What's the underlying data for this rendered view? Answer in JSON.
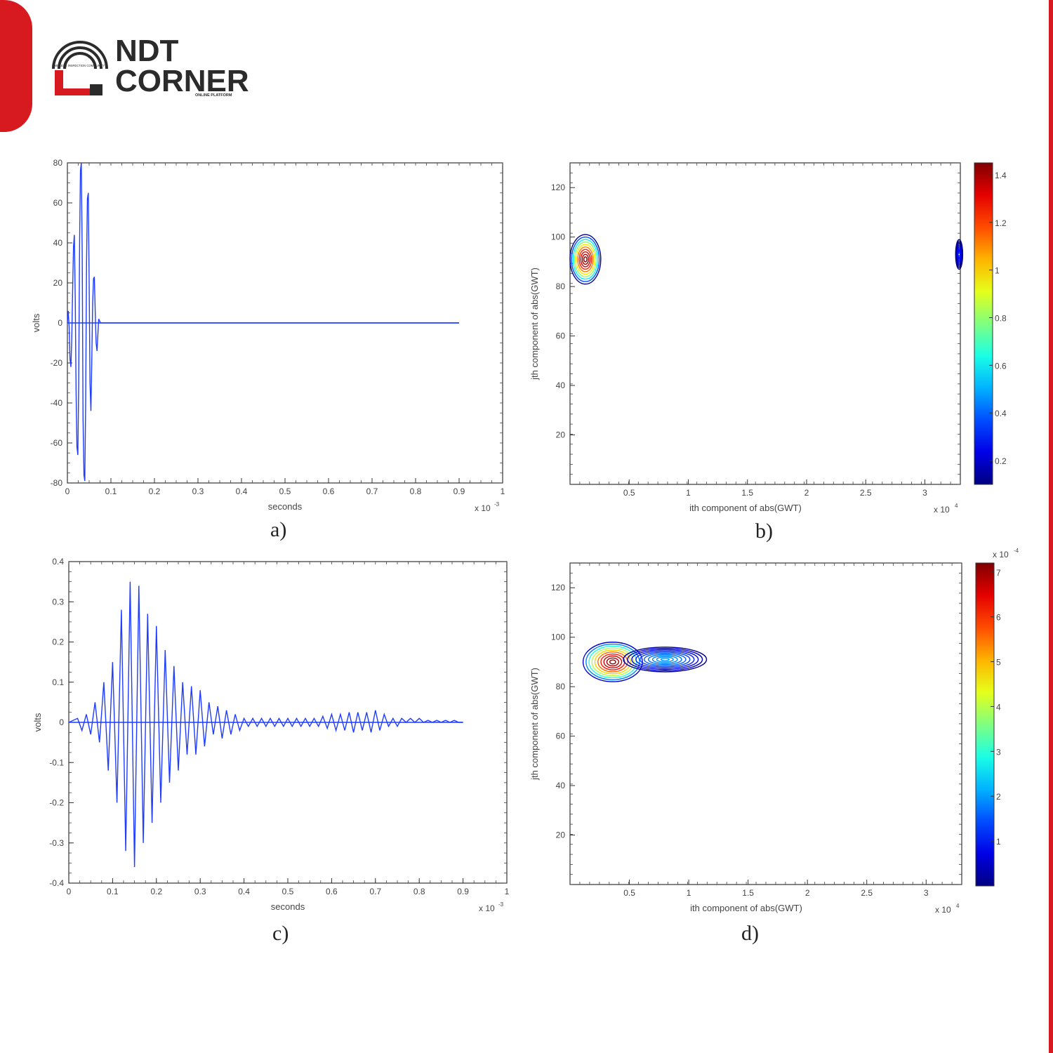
{
  "colors": {
    "brand_red": "#d71920",
    "dark": "#2b2b2b",
    "signal": "#1f3cff",
    "axis": "#333333"
  },
  "logo": {
    "word1": "NDT",
    "word2": "CORNER",
    "small_left": "LIMITLESS INSPECTION COMMUNITY",
    "small_right": "ONLINE PLATFORM"
  },
  "captions": {
    "a": "a)",
    "b": "b)",
    "c": "c)",
    "d": "d)"
  },
  "chart_data": [
    {
      "id": "a",
      "type": "line",
      "xlabel": "seconds",
      "ylabel": "volts",
      "x_multiplier": "x 10",
      "x_exponent": "-3",
      "xlim": [
        0,
        1
      ],
      "ylim": [
        -80,
        80
      ],
      "xticks": [
        "0",
        "0.1",
        "0.2",
        "0.3",
        "0.4",
        "0.5",
        "0.6",
        "0.7",
        "0.8",
        "0.9",
        "1"
      ],
      "yticks": [
        "80",
        "60",
        "40",
        "20",
        "0",
        "-20",
        "-40",
        "-60",
        "-80"
      ],
      "series": [
        {
          "x": [
            0.0,
            0.002,
            0.004,
            0.006,
            0.008,
            0.01,
            0.012,
            0.014,
            0.016,
            0.018,
            0.02,
            0.022,
            0.024,
            0.026,
            0.028,
            0.03,
            0.032,
            0.034,
            0.036,
            0.038,
            0.04,
            0.042,
            0.044,
            0.046,
            0.048,
            0.05,
            0.052,
            0.054,
            0.056,
            0.058,
            0.06,
            0.062,
            0.064,
            0.066,
            0.068,
            0.07,
            0.072,
            0.074,
            0.076,
            0.078,
            0.08,
            0.082,
            0.084,
            0.086,
            0.088,
            0.09,
            0.092,
            0.094,
            0.096,
            0.098,
            0.1,
            0.11,
            0.2,
            0.5,
            0.9
          ],
          "y": [
            0,
            6,
            -2,
            -18,
            -22,
            -8,
            15,
            38,
            44,
            12,
            -35,
            -62,
            -66,
            -30,
            40,
            76,
            80,
            35,
            -48,
            -76,
            -79,
            -40,
            30,
            62,
            65,
            20,
            -30,
            -44,
            -20,
            10,
            22,
            23,
            5,
            -10,
            -14,
            -6,
            2,
            1,
            0,
            0,
            0,
            0,
            0,
            0,
            0,
            0,
            0,
            0,
            0,
            0,
            0,
            0,
            0,
            0,
            0
          ]
        }
      ]
    },
    {
      "id": "b",
      "type": "contour",
      "xlabel": "ith component of abs(GWT)",
      "ylabel": "jth component of abs(GWT)",
      "x_multiplier": "x 10",
      "x_exponent": "4",
      "xlim": [
        0,
        3.3
      ],
      "ylim": [
        0,
        130
      ],
      "xticks": [
        "0.5",
        "1",
        "1.5",
        "2",
        "2.5",
        "3"
      ],
      "yticks": [
        "120",
        "100",
        "80",
        "60",
        "40",
        "20"
      ],
      "colorbar": {
        "min": 0.1,
        "max": 1.45,
        "ticks": [
          "1.4",
          "1.2",
          "1",
          "0.8",
          "0.6",
          "0.4",
          "0.2"
        ],
        "multiplier": ""
      },
      "peaks": [
        {
          "x": 0.13,
          "y": 91,
          "amplitude": 1.45,
          "rx": 0.13,
          "ry": 10
        },
        {
          "x": 3.29,
          "y": 93,
          "amplitude": 0.3,
          "rx": 0.03,
          "ry": 6
        }
      ]
    },
    {
      "id": "c",
      "type": "line",
      "xlabel": "seconds",
      "ylabel": "volts",
      "x_multiplier": "x 10",
      "x_exponent": "-3",
      "xlim": [
        0,
        1
      ],
      "ylim": [
        -0.4,
        0.4
      ],
      "xticks": [
        "0",
        "0.1",
        "0.2",
        "0.3",
        "0.4",
        "0.5",
        "0.6",
        "0.7",
        "0.8",
        "0.9",
        "1"
      ],
      "yticks": [
        "0.4",
        "0.3",
        "0.2",
        "0.1",
        "0",
        "-0.1",
        "-0.2",
        "-0.3",
        "-0.4"
      ],
      "series": [
        {
          "x": [
            0.0,
            0.02,
            0.03,
            0.04,
            0.05,
            0.06,
            0.07,
            0.08,
            0.09,
            0.1,
            0.11,
            0.12,
            0.13,
            0.14,
            0.15,
            0.16,
            0.17,
            0.18,
            0.19,
            0.2,
            0.21,
            0.22,
            0.23,
            0.24,
            0.25,
            0.26,
            0.27,
            0.28,
            0.29,
            0.3,
            0.31,
            0.32,
            0.33,
            0.34,
            0.35,
            0.36,
            0.37,
            0.38,
            0.39,
            0.4,
            0.41,
            0.42,
            0.43,
            0.44,
            0.45,
            0.46,
            0.47,
            0.48,
            0.49,
            0.5,
            0.51,
            0.52,
            0.53,
            0.54,
            0.55,
            0.56,
            0.57,
            0.58,
            0.59,
            0.6,
            0.61,
            0.62,
            0.63,
            0.64,
            0.65,
            0.66,
            0.67,
            0.68,
            0.69,
            0.7,
            0.71,
            0.72,
            0.73,
            0.74,
            0.75,
            0.76,
            0.77,
            0.78,
            0.79,
            0.8,
            0.81,
            0.82,
            0.83,
            0.84,
            0.85,
            0.86,
            0.87,
            0.88,
            0.89,
            0.9
          ],
          "y": [
            0,
            0.01,
            -0.02,
            0.02,
            -0.03,
            0.05,
            -0.05,
            0.1,
            -0.12,
            0.15,
            -0.2,
            0.28,
            -0.32,
            0.35,
            -0.36,
            0.34,
            -0.3,
            0.27,
            -0.25,
            0.24,
            -0.2,
            0.18,
            -0.15,
            0.14,
            -0.12,
            0.1,
            -0.08,
            0.09,
            -0.08,
            0.08,
            -0.06,
            0.05,
            -0.03,
            0.04,
            -0.04,
            0.03,
            -0.03,
            0.02,
            -0.02,
            0.01,
            -0.01,
            0.01,
            -0.01,
            0.01,
            -0.01,
            0.01,
            -0.01,
            0.01,
            -0.01,
            0.01,
            -0.01,
            0.01,
            -0.01,
            0.01,
            -0.01,
            0.01,
            -0.01,
            0.015,
            -0.015,
            0.02,
            -0.02,
            0.02,
            -0.02,
            0.025,
            -0.025,
            0.025,
            -0.02,
            0.025,
            -0.025,
            0.03,
            -0.02,
            0.02,
            -0.01,
            0.01,
            -0.01,
            0.01,
            0,
            0.01,
            0,
            0.01,
            0,
            0.005,
            0,
            0.005,
            0,
            0.005,
            0,
            0.005,
            0,
            0
          ]
        }
      ]
    },
    {
      "id": "d",
      "type": "contour",
      "xlabel": "ith component of abs(GWT)",
      "ylabel": "jth component of abs(GWT)",
      "x_multiplier": "x 10",
      "x_exponent": "4",
      "xlim": [
        0,
        3.3
      ],
      "ylim": [
        0,
        130
      ],
      "xticks": [
        "0.5",
        "1",
        "1.5",
        "2",
        "2.5",
        "3"
      ],
      "yticks": [
        "120",
        "100",
        "80",
        "60",
        "40",
        "20"
      ],
      "colorbar": {
        "min": 0,
        "max": 7.2,
        "ticks": [
          "7",
          "6",
          "5",
          "4",
          "3",
          "2",
          "1"
        ],
        "multiplier": "x 10",
        "exponent": "-4"
      },
      "peaks": [
        {
          "x": 0.36,
          "y": 90,
          "amplitude": 7.2,
          "rx": 0.25,
          "ry": 8
        },
        {
          "x": 0.8,
          "y": 91,
          "amplitude": 2.0,
          "rx": 0.35,
          "ry": 5
        }
      ]
    }
  ]
}
